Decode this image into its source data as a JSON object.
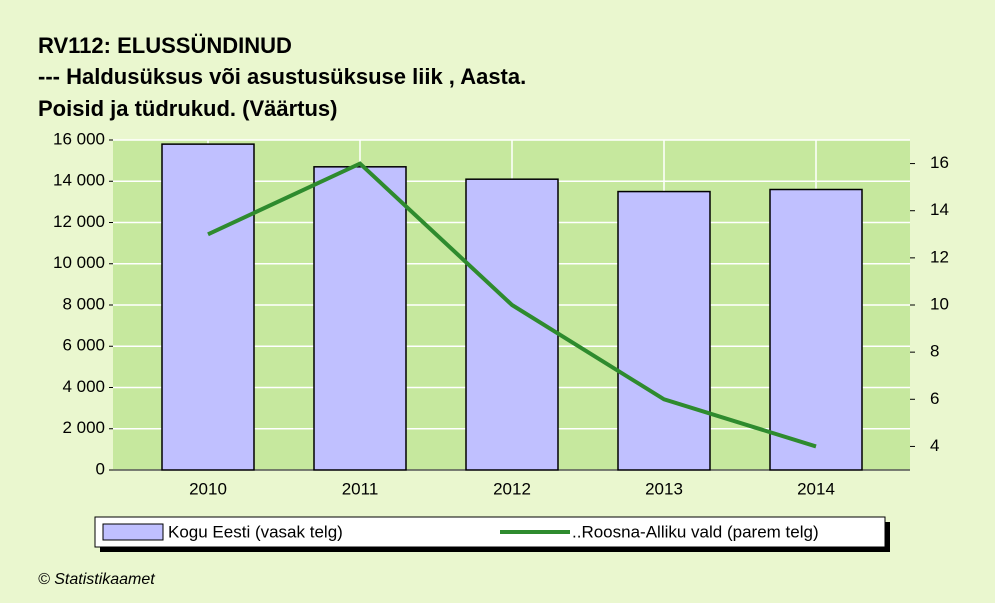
{
  "chart_data": {
    "type": "bar",
    "title": "RV112: ELUSSÜNDINUD",
    "subtitle": [
      "--- Haldusüksus või asustusüksuse liik , Aasta.",
      "Poisid ja tüdrukud. (Väärtus)"
    ],
    "categories": [
      "2010",
      "2011",
      "2012",
      "2013",
      "2014"
    ],
    "series": [
      {
        "name": "Kogu Eesti (vasak telg)",
        "type": "bar",
        "color": "#c0c0ff",
        "values": [
          15800,
          14700,
          14100,
          13500,
          13600
        ]
      },
      {
        "name": "..Roosna-Alliku vald (parem telg)",
        "type": "line",
        "axis": "y2",
        "color": "#2e8b2e",
        "values": [
          13,
          16,
          10,
          6,
          4
        ]
      }
    ],
    "ylim": [
      0,
      16000
    ],
    "yticks": [
      0,
      {
        "value": 2000,
        "label": "2 000"
      },
      {
        "value": 4000,
        "label": "4 000"
      },
      {
        "value": 6000,
        "label": "6 000"
      },
      {
        "value": 8000,
        "label": "8 000"
      },
      {
        "value": 10000,
        "label": "10 000"
      },
      {
        "value": 12000,
        "label": "12 000"
      },
      {
        "value": 14000,
        "label": "14 000"
      },
      {
        "value": 16000,
        "label": "16 000"
      }
    ],
    "y2lim": [
      3,
      17
    ],
    "y2ticks": [
      4,
      6,
      8,
      10,
      12,
      14,
      16
    ],
    "grid": true,
    "source": "© Statistikaamet"
  }
}
